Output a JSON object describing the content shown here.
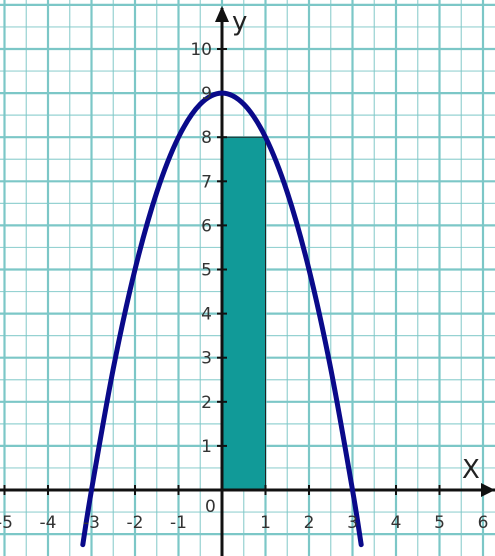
{
  "chart_data": {
    "type": "area",
    "title": "",
    "xlabel": "X",
    "ylabel": "y",
    "xlim": [
      -5,
      6
    ],
    "ylim": [
      -1.5,
      11
    ],
    "grid": true,
    "x_ticks": [
      {
        "v": -5,
        "label": "-5"
      },
      {
        "v": -4,
        "label": "-4"
      },
      {
        "v": -3,
        "label": "-3"
      },
      {
        "v": -2,
        "label": "-2"
      },
      {
        "v": -1,
        "label": "-1"
      },
      {
        "v": 1,
        "label": "1"
      },
      {
        "v": 2,
        "label": "2"
      },
      {
        "v": 3,
        "label": "3"
      },
      {
        "v": 4,
        "label": "4"
      },
      {
        "v": 5,
        "label": "5"
      },
      {
        "v": 6,
        "label": "6"
      }
    ],
    "y_ticks": [
      {
        "v": 1,
        "label": "1"
      },
      {
        "v": 2,
        "label": "2"
      },
      {
        "v": 3,
        "label": "3"
      },
      {
        "v": 4,
        "label": "4"
      },
      {
        "v": 5,
        "label": "5"
      },
      {
        "v": 6,
        "label": "6"
      },
      {
        "v": 7,
        "label": "7"
      },
      {
        "v": 8,
        "label": "8"
      },
      {
        "v": 9,
        "label": "9"
      },
      {
        "v": 10,
        "label": "10"
      }
    ],
    "origin_label": "0",
    "curve": {
      "x": [
        -3.2,
        -3,
        -2.5,
        -2,
        -1.5,
        -1,
        -0.5,
        0,
        0.5,
        1,
        1.5,
        2,
        2.5,
        3,
        3.2
      ],
      "y": [
        -1.24,
        0,
        2.75,
        5,
        6.75,
        8,
        8.75,
        9,
        8.75,
        8,
        6.75,
        5,
        2.75,
        0,
        -1.24
      ],
      "color": "#0a0a8a"
    },
    "shaded_rect": {
      "x": [
        0,
        1
      ],
      "y": [
        0,
        8
      ],
      "color": "#119a98"
    },
    "colors": {
      "grid": "#7cc7c7",
      "axis": "#111111"
    }
  }
}
